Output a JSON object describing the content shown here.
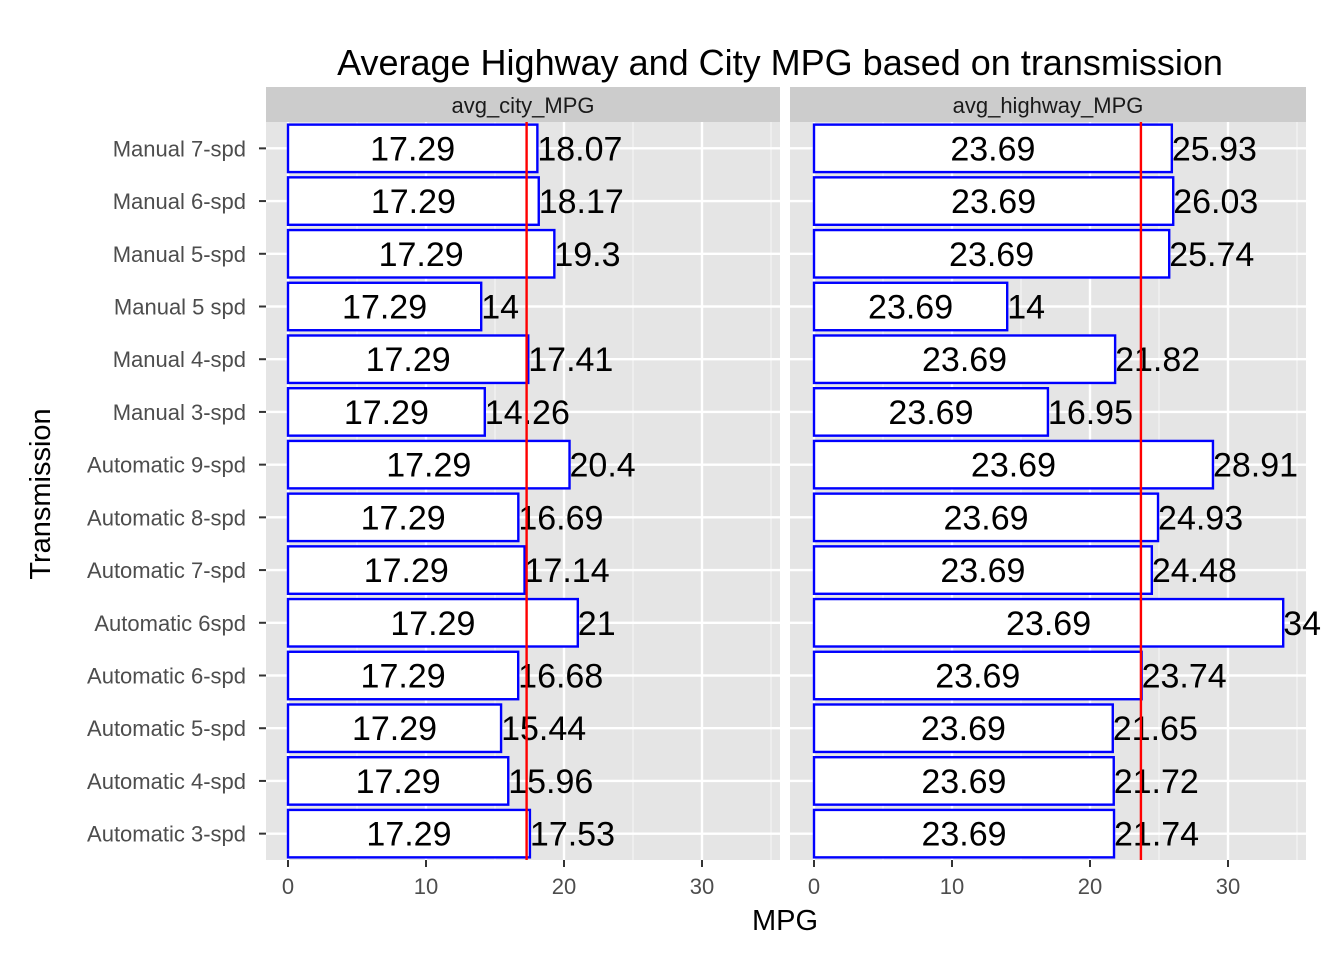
{
  "chart_data": {
    "type": "bar",
    "orientation": "horizontal",
    "title": "Average Highway and City MPG based on transmission",
    "xlabel": "MPG",
    "ylabel": "Transmission",
    "xlim": [
      0,
      35
    ],
    "xticks": [
      0,
      10,
      20,
      30
    ],
    "grid": true,
    "categories": [
      "Manual 7-spd",
      "Manual 6-spd",
      "Manual 5-spd",
      "Manual 5 spd",
      "Manual 4-spd",
      "Manual 3-spd",
      "Automatic 9-spd",
      "Automatic 8-spd",
      "Automatic 7-spd",
      "Automatic 6spd",
      "Automatic 6-spd",
      "Automatic 5-spd",
      "Automatic 4-spd",
      "Automatic 3-spd"
    ],
    "panels": [
      {
        "name": "avg_city_MPG",
        "values": [
          18.07,
          18.17,
          19.3,
          14,
          17.41,
          14.26,
          20.4,
          16.69,
          17.14,
          21,
          16.68,
          15.44,
          15.96,
          17.53
        ],
        "value_labels": [
          "18.07",
          "18.17",
          "19.3",
          "14",
          "17.41",
          "14.26",
          "20.4",
          "16.69",
          "17.14",
          "21",
          "16.68",
          "15.44",
          "15.96",
          "17.53"
        ],
        "mean": 17.29,
        "mean_label": "17.29"
      },
      {
        "name": "avg_highway_MPG",
        "values": [
          25.93,
          26.03,
          25.74,
          14,
          21.82,
          16.95,
          28.91,
          24.93,
          24.48,
          34,
          23.74,
          21.65,
          21.72,
          21.74
        ],
        "value_labels": [
          "25.93",
          "26.03",
          "25.74",
          "14",
          "21.82",
          "16.95",
          "28.91",
          "24.93",
          "24.48",
          "34",
          "23.74",
          "21.65",
          "21.72",
          "21.74"
        ],
        "mean": 23.69,
        "mean_label": "23.69"
      }
    ],
    "colors": {
      "bar_fill": "#ffffff",
      "bar_outline": "#0000ff",
      "mean_line": "#ff0000",
      "panel_bg": "#e5e5e5",
      "strip_bg": "#cccccc",
      "grid": "#ffffff",
      "tick_text": "#4d4d4d"
    }
  }
}
